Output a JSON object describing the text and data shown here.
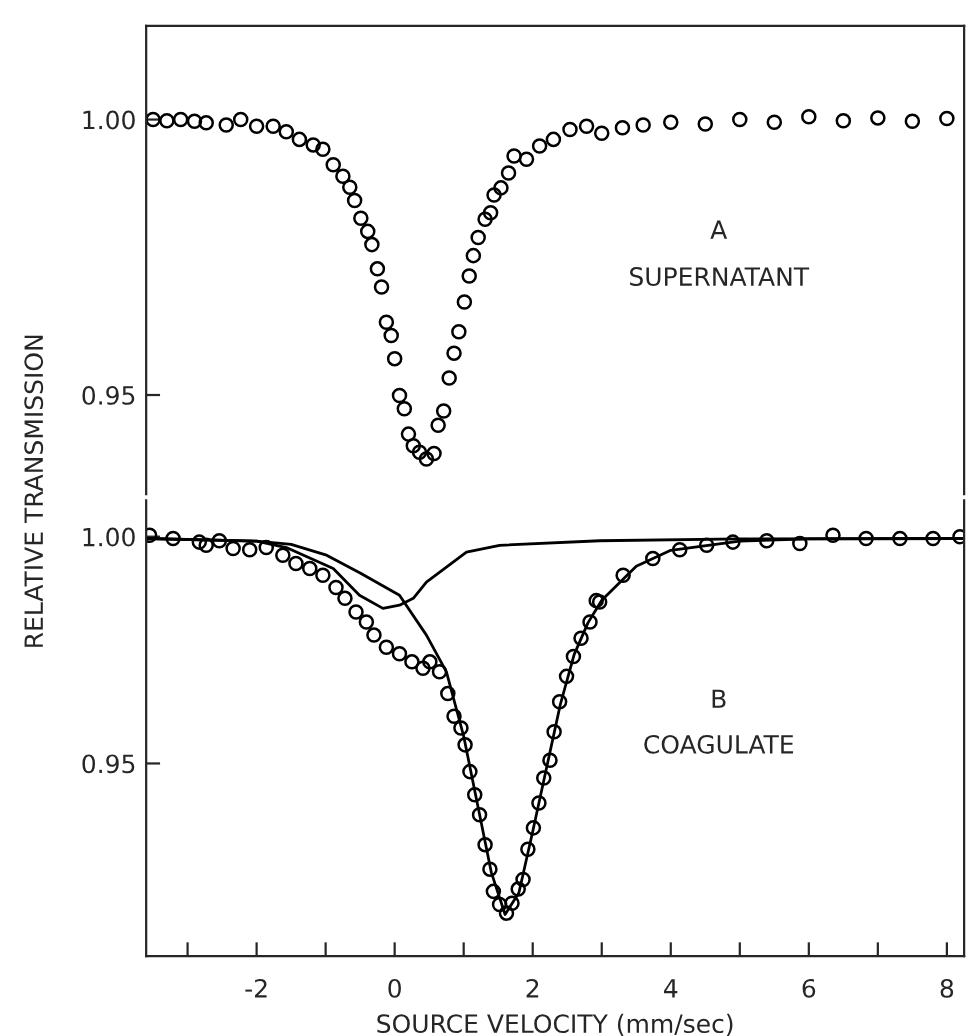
{
  "chart_data": [
    {
      "type": "scatter",
      "xlim": [
        -3.6,
        8.25
      ],
      "ylim": [
        0.932,
        1.017
      ],
      "yticks": [
        0.95,
        {
          "value": 1.0,
          "label": "1.00"
        }
      ],
      "tick_labels": "y",
      "marker": "circle",
      "grid": false,
      "legend": false,
      "annotations": [
        "A",
        "SUPERNATANT"
      ],
      "series": [
        {
          "color": "#000000",
          "x": [
            -3.5,
            -3.3,
            -3.1,
            -2.9,
            -2.73,
            -2.44,
            -2.23,
            -2.0,
            -1.76,
            -1.57,
            -1.38,
            -1.18,
            -1.04,
            -0.89,
            -0.75,
            -0.65,
            -0.58,
            -0.49,
            -0.39,
            -0.33,
            -0.25,
            -0.19,
            -0.12,
            -0.05,
            0.0,
            0.07,
            0.14,
            0.2,
            0.27,
            0.36,
            0.46,
            0.57,
            0.63,
            0.71,
            0.79,
            0.86,
            0.93,
            1.01,
            1.08,
            1.14,
            1.21,
            1.31,
            1.39,
            1.44,
            1.54,
            1.65,
            1.73,
            1.91,
            2.1,
            2.3,
            2.54,
            2.78,
            3.0,
            3.3,
            3.6,
            4.0,
            4.5,
            5.0,
            5.5,
            6.0,
            6.5,
            7.0,
            7.5,
            8.0
          ],
          "values": [
            1.0,
            0.9998,
            1.0,
            0.9997,
            0.9994,
            0.999,
            1.0,
            0.9988,
            0.9988,
            0.9978,
            0.9964,
            0.9954,
            0.9946,
            0.9918,
            0.9897,
            0.9877,
            0.9853,
            0.9821,
            0.9797,
            0.9773,
            0.9729,
            0.9696,
            0.9632,
            0.9608,
            0.9566,
            0.9499,
            0.9475,
            0.9429,
            0.9408,
            0.9396,
            0.9384,
            0.9394,
            0.9445,
            0.9471,
            0.9531,
            0.9576,
            0.9615,
            0.9669,
            0.9716,
            0.9753,
            0.9786,
            0.9819,
            0.9831,
            0.9863,
            0.9876,
            0.9903,
            0.9934,
            0.9928,
            0.9952,
            0.9964,
            0.9982,
            0.9988,
            0.9975,
            0.9985,
            0.999,
            0.9995,
            0.9992,
            1.0,
            0.9995,
            1.0005,
            0.9998,
            1.0003,
            0.9997,
            1.0002
          ]
        }
      ]
    },
    {
      "type": "scatter",
      "xlim": [
        -3.6,
        8.25
      ],
      "ylim": [
        0.9075,
        1.008
      ],
      "xticks": [
        {
          "value": -3,
          "label": null
        },
        -2,
        {
          "value": -1,
          "label": null
        },
        0,
        {
          "value": 1,
          "label": null
        },
        2,
        {
          "value": 3,
          "label": null
        },
        4,
        {
          "value": 5,
          "label": null
        },
        6,
        {
          "value": 7,
          "label": null
        },
        8
      ],
      "yticks": [
        0.95,
        {
          "value": 1.0,
          "label": "1.00"
        }
      ],
      "xlabel": "SOURCE VELOCITY (mm/sec)",
      "ylabel": "RELATIVE TRANSMISSION",
      "marker": "circle",
      "grid": false,
      "legend": false,
      "annotations": [
        "B",
        "COAGULATE"
      ],
      "series": [
        {
          "color": "#000000",
          "x": [
            -3.55,
            -3.21,
            -2.83,
            -2.73,
            -2.54,
            -2.34,
            -2.1,
            -1.86,
            -1.62,
            -1.43,
            -1.23,
            -1.04,
            -0.85,
            -0.72,
            -0.56,
            -0.41,
            -0.3,
            -0.12,
            0.07,
            0.25,
            0.41,
            0.51,
            0.65,
            0.77,
            0.86,
            0.96,
            1.02,
            1.09,
            1.16,
            1.23,
            1.31,
            1.38,
            1.43,
            1.52,
            1.62,
            1.7,
            1.79,
            1.86,
            1.93,
            2.01,
            2.09,
            2.16,
            2.25,
            2.31,
            2.39,
            2.49,
            2.59,
            2.7,
            2.83,
            2.92,
            2.97,
            3.31,
            3.74,
            4.13,
            4.52,
            4.9,
            5.39,
            5.87,
            6.35,
            6.83,
            7.32,
            7.8,
            8.19
          ],
          "values": [
            1.0003,
            0.9996,
            0.9988,
            0.9981,
            0.9991,
            0.9974,
            0.9971,
            0.9976,
            0.9959,
            0.9941,
            0.993,
            0.9915,
            0.9888,
            0.9864,
            0.9834,
            0.9812,
            0.9783,
            0.9756,
            0.9742,
            0.9724,
            0.971,
            0.9724,
            0.9702,
            0.9654,
            0.9604,
            0.9578,
            0.9541,
            0.9482,
            0.9431,
            0.9387,
            0.9321,
            0.9267,
            0.9218,
            0.9189,
            0.917,
            0.9192,
            0.9223,
            0.9244,
            0.9311,
            0.9358,
            0.9413,
            0.9468,
            0.9507,
            0.957,
            0.9636,
            0.9692,
            0.9736,
            0.9776,
            0.9812,
            0.9859,
            0.9856,
            0.9915,
            0.9952,
            0.9971,
            0.9981,
            0.9988,
            0.9991,
            0.9985,
            1.0003,
            0.9996,
            0.9996,
            0.9996,
            1.0
          ]
        },
        {
          "type": "line",
          "color": "#000000",
          "marker": "none",
          "x": [
            -3.6,
            -2.0,
            -1.57,
            -0.89,
            -0.51,
            -0.17,
            0.07,
            0.27,
            0.46,
            1.04,
            1.52,
            2.97,
            5.0,
            8.25
          ],
          "values": [
            0.9996,
            0.999,
            0.9976,
            0.993,
            0.9871,
            0.9842,
            0.9849,
            0.9864,
            0.99,
            0.9966,
            0.9981,
            0.9991,
            0.9995,
            0.9996
          ]
        },
        {
          "type": "line",
          "color": "#000000",
          "marker": "none",
          "x": [
            -3.6,
            -2.0,
            -1.5,
            -1.0,
            -0.5,
            0.07,
            0.46,
            0.75,
            1.0,
            1.2,
            1.4,
            1.6,
            1.8,
            2.0,
            2.2,
            2.4,
            2.6,
            2.8,
            3.0,
            3.5,
            4.0,
            5.0,
            6.0,
            8.25
          ],
          "values": [
            0.9996,
            0.999,
            0.9983,
            0.996,
            0.992,
            0.9871,
            0.9783,
            0.9702,
            0.956,
            0.941,
            0.926,
            0.9167,
            0.9215,
            0.935,
            0.949,
            0.963,
            0.974,
            0.981,
            0.986,
            0.9935,
            0.997,
            0.999,
            0.9995,
            0.9996
          ]
        }
      ]
    }
  ]
}
